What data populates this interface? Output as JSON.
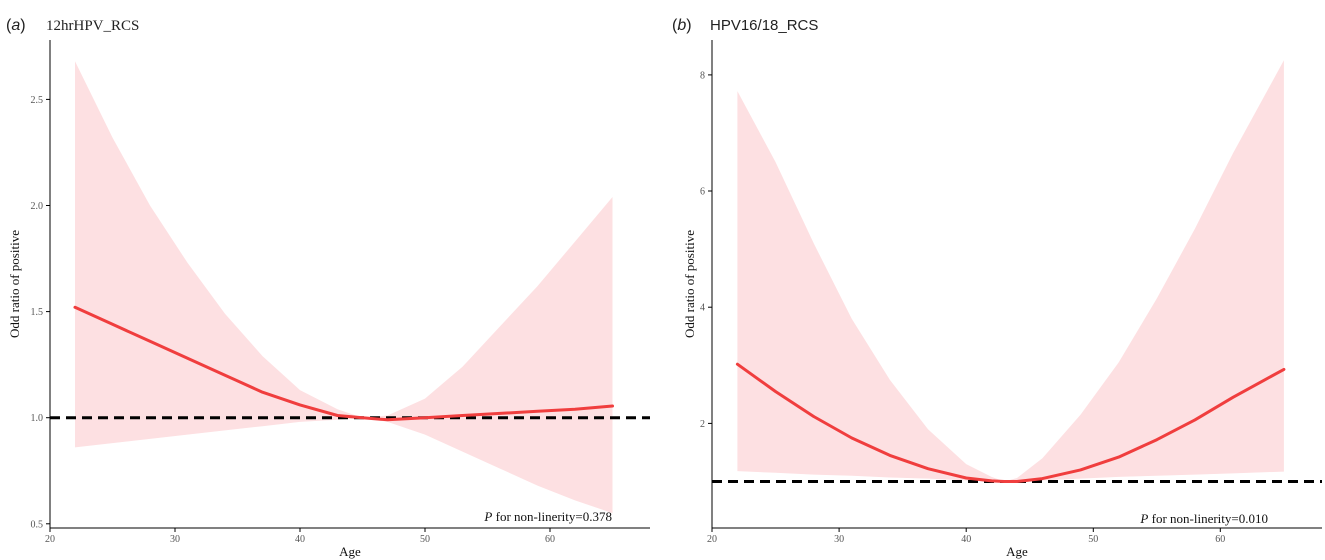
{
  "chart_data": [
    {
      "type": "line",
      "panel_label": "a",
      "title": "12hrHPV_RCS",
      "xlabel": "Age",
      "ylabel": "Odd ratio of positive",
      "xlim": [
        20,
        68
      ],
      "ylim": [
        0.48,
        2.78
      ],
      "xticks": [
        20,
        30,
        40,
        50,
        60
      ],
      "yticks": [
        0.5,
        1.0,
        1.5,
        2.0,
        2.5
      ],
      "ytick_labels": [
        "0.5",
        "1.0",
        "1.5",
        "2.0",
        "2.5"
      ],
      "reference_line": 1.0,
      "annotation": {
        "p": "P",
        "text": " for non-linerity=0.378"
      },
      "grid": false,
      "series": [
        {
          "x": [
            22,
            25,
            28,
            31,
            34,
            37,
            40,
            43,
            45,
            47,
            50,
            53,
            56,
            59,
            62,
            65
          ],
          "y": [
            1.52,
            1.44,
            1.36,
            1.28,
            1.2,
            1.12,
            1.06,
            1.01,
            1.0,
            0.99,
            1.0,
            1.01,
            1.02,
            1.03,
            1.04,
            1.055
          ],
          "lower": [
            0.86,
            0.88,
            0.9,
            0.92,
            0.94,
            0.96,
            0.98,
            0.99,
            1.0,
            0.98,
            0.92,
            0.84,
            0.76,
            0.68,
            0.61,
            0.55
          ],
          "upper": [
            2.68,
            2.32,
            2.0,
            1.73,
            1.49,
            1.29,
            1.13,
            1.04,
            1.0,
            1.01,
            1.09,
            1.24,
            1.43,
            1.62,
            1.83,
            2.04
          ],
          "color": "#f03e3e",
          "band_color": "#fde0e2"
        }
      ]
    },
    {
      "type": "line",
      "panel_label": "b",
      "title": "HPV16/18_RCS",
      "xlabel": "Age",
      "ylabel": "Odd ratio of positive",
      "xlim": [
        20,
        68
      ],
      "ylim": [
        0.2,
        8.6
      ],
      "xticks": [
        20,
        30,
        40,
        50,
        60
      ],
      "yticks": [
        2,
        4,
        6,
        8
      ],
      "ytick_labels": [
        "2",
        "4",
        "6",
        "8"
      ],
      "reference_line": 1.0,
      "annotation": {
        "p": "P",
        "text": " for non-linerity=0.010"
      },
      "grid": false,
      "series": [
        {
          "x": [
            22,
            25,
            28,
            31,
            34,
            37,
            40,
            42,
            43,
            44,
            46,
            49,
            52,
            55,
            58,
            61,
            65
          ],
          "y": [
            3.02,
            2.55,
            2.12,
            1.75,
            1.45,
            1.22,
            1.06,
            1.01,
            1.0,
            1.0,
            1.05,
            1.2,
            1.42,
            1.72,
            2.06,
            2.45,
            2.93
          ],
          "lower": [
            1.18,
            1.15,
            1.12,
            1.1,
            1.07,
            1.05,
            1.02,
            1.0,
            1.0,
            1.0,
            1.02,
            1.05,
            1.08,
            1.1,
            1.12,
            1.14,
            1.17
          ],
          "upper": [
            7.72,
            6.5,
            5.1,
            3.8,
            2.75,
            1.9,
            1.3,
            1.08,
            1.0,
            1.06,
            1.4,
            2.15,
            3.05,
            4.15,
            5.35,
            6.65,
            8.25
          ],
          "color": "#f03e3e",
          "band_color": "#fde0e2"
        }
      ]
    }
  ]
}
